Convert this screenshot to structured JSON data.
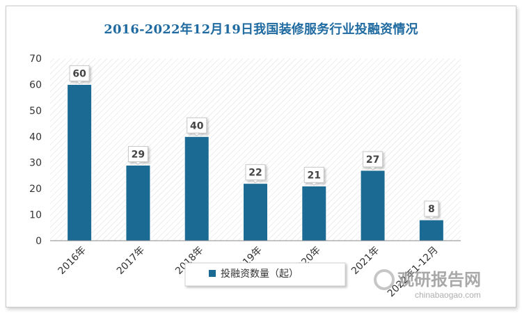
{
  "chart_data": {
    "type": "bar",
    "title": "2016-2022年12月19日我国装修服务行业投融资情况",
    "categories": [
      "2016年",
      "2017年",
      "2018年",
      "2019年",
      "2020年",
      "2021年",
      "2022年1-12月"
    ],
    "series": [
      {
        "name": "投融资数量（起）",
        "values": [
          60,
          29,
          40,
          22,
          21,
          27,
          8
        ]
      }
    ],
    "yticks": [
      "0",
      "10",
      "20",
      "30",
      "40",
      "50",
      "60",
      "70"
    ],
    "ylim": [
      0,
      70
    ],
    "legend": "bottom-center",
    "grid": false,
    "colors": {
      "bar": "#1b6a93",
      "title": "#1f6aa0"
    }
  },
  "watermark": {
    "brand": "观研报告网",
    "url": "chinabaogao.com"
  }
}
